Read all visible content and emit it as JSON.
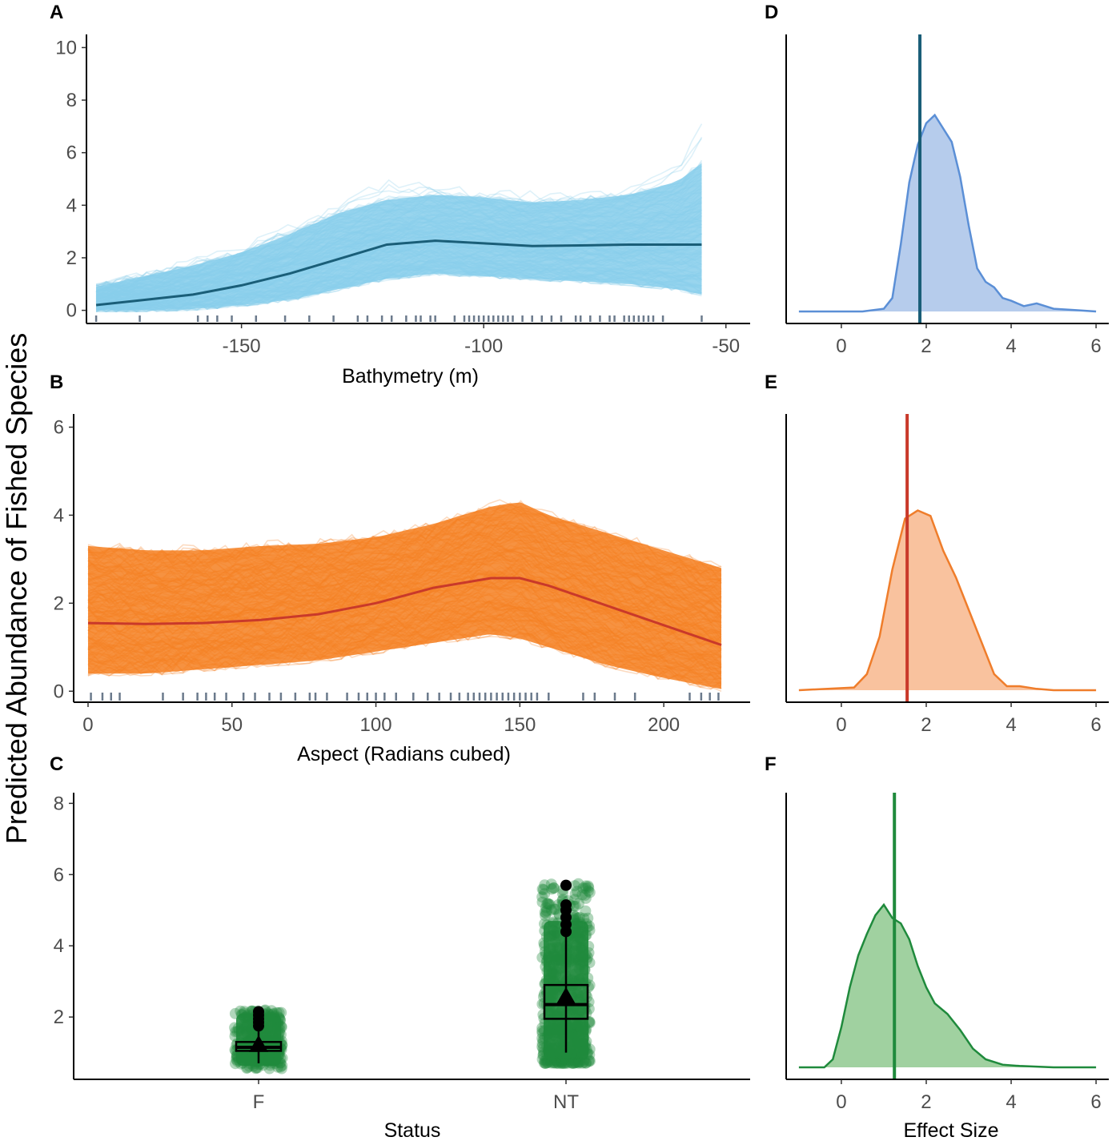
{
  "figure": {
    "y_title": "Predicted Abundance of Fished Species"
  },
  "chart_data": [
    {
      "id": "A",
      "panel_label": "A",
      "type": "line",
      "xlabel": "Bathymetry (m)",
      "ylabel": "",
      "xlim": [
        -182,
        -45
      ],
      "ylim": [
        -0.5,
        10.5
      ],
      "x_ticks": [
        -150,
        -100,
        -50
      ],
      "x_tick_labels": [
        "-150",
        "-100",
        "-50"
      ],
      "y_ticks": [
        0,
        2,
        4,
        6,
        8,
        10
      ],
      "y_tick_labels": [
        "0",
        "2",
        "4",
        "6",
        "8",
        "10"
      ],
      "x": [
        -180,
        -170,
        -160,
        -150,
        -140,
        -130,
        -120,
        -110,
        -100,
        -90,
        -80,
        -70,
        -60,
        -55
      ],
      "mean_line": [
        0.2,
        0.4,
        0.6,
        0.95,
        1.4,
        1.95,
        2.5,
        2.65,
        2.55,
        2.45,
        2.47,
        2.5,
        2.5,
        2.5
      ],
      "band_upper": [
        0.9,
        1.3,
        1.7,
        2.2,
        2.9,
        3.7,
        4.2,
        4.4,
        4.3,
        4.1,
        4.2,
        4.4,
        4.9,
        5.6
      ],
      "band_lower": [
        0.0,
        0.0,
        0.05,
        0.2,
        0.4,
        0.8,
        1.2,
        1.4,
        1.3,
        1.2,
        1.1,
        1.0,
        0.8,
        0.6
      ],
      "bootstrap_max": [
        1.0,
        1.5,
        2.0,
        2.5,
        3.3,
        4.2,
        5.2,
        4.9,
        4.7,
        4.6,
        4.5,
        4.8,
        5.8,
        7.5
      ],
      "rug": [
        -180,
        -171,
        -159,
        -157,
        -155,
        -152,
        -147,
        -141,
        -136,
        -131,
        -126,
        -124,
        -121,
        -119,
        -116,
        -114,
        -113,
        -111,
        -110,
        -106,
        -104,
        -103,
        -102,
        -101,
        -100,
        -99,
        -98,
        -97,
        -96,
        -95,
        -94,
        -92,
        -90,
        -88,
        -86,
        -84,
        -81,
        -80,
        -78,
        -76,
        -74,
        -73,
        -71,
        -70,
        -69,
        -68,
        -67,
        -66,
        -65,
        -63,
        -55
      ],
      "colors": {
        "band": "#87ceeb",
        "mean": "#1a5e78",
        "rug": "#6b7a8c"
      }
    },
    {
      "id": "B",
      "panel_label": "B",
      "type": "line",
      "xlabel": "Aspect (Radians cubed)",
      "ylabel": "",
      "xlim": [
        -5,
        230
      ],
      "ylim": [
        -0.25,
        6.3
      ],
      "x_ticks": [
        0,
        50,
        100,
        150,
        200
      ],
      "x_tick_labels": [
        "0",
        "50",
        "100",
        "150",
        "200"
      ],
      "y_ticks": [
        0,
        2,
        4,
        6
      ],
      "y_tick_labels": [
        "0",
        "2",
        "4",
        "6"
      ],
      "x": [
        0,
        20,
        40,
        60,
        80,
        100,
        120,
        140,
        150,
        160,
        180,
        200,
        220
      ],
      "mean_line": [
        1.55,
        1.53,
        1.55,
        1.62,
        1.75,
        2.0,
        2.35,
        2.57,
        2.57,
        2.4,
        1.95,
        1.5,
        1.05
      ],
      "band_upper": [
        3.3,
        3.2,
        3.2,
        3.3,
        3.35,
        3.5,
        3.8,
        4.2,
        4.3,
        4.0,
        3.6,
        3.2,
        2.8
      ],
      "band_lower": [
        0.4,
        0.4,
        0.5,
        0.6,
        0.7,
        0.9,
        1.1,
        1.3,
        1.2,
        1.0,
        0.6,
        0.3,
        0.05
      ],
      "bootstrap_max": [
        4.1,
        3.8,
        3.6,
        3.8,
        3.7,
        3.8,
        4.6,
        5.5,
        5.3,
        4.8,
        4.2,
        4.0,
        3.9
      ],
      "rug": [
        1,
        5,
        8,
        11,
        26,
        33,
        38,
        41,
        44,
        48,
        54,
        58,
        63,
        67,
        72,
        77,
        79,
        83,
        90,
        94,
        97,
        100,
        103,
        107,
        113,
        118,
        122,
        126,
        129,
        132,
        134,
        136,
        138,
        140,
        142,
        144,
        146,
        148,
        150,
        152,
        154,
        156,
        160,
        172,
        176,
        183,
        190,
        209,
        213,
        216,
        219
      ],
      "colors": {
        "band": "#f57f20",
        "mean": "#c9392a",
        "rug": "#6b7a8c"
      }
    },
    {
      "id": "C",
      "panel_label": "C",
      "type": "box",
      "xlabel": "Status",
      "ylabel": "",
      "categories": [
        "F",
        "NT"
      ],
      "ylim": [
        0.25,
        8.3
      ],
      "y_ticks": [
        2,
        4,
        6,
        8
      ],
      "y_tick_labels": [
        "2",
        "4",
        "6",
        "8"
      ],
      "boxes": [
        {
          "category": "F",
          "min": 0.7,
          "q1": 1.05,
          "median": 1.15,
          "q3": 1.3,
          "max": 1.6,
          "mean": 1.2,
          "outliers": [
            1.75,
            1.85,
            1.95,
            2.05,
            2.15
          ],
          "points_min": 0.55,
          "points_max": 2.2
        },
        {
          "category": "NT",
          "min": 1.0,
          "q1": 1.95,
          "median": 2.35,
          "q3": 2.9,
          "max": 4.3,
          "mean": 2.55,
          "outliers": [
            4.4,
            4.6,
            4.8,
            5.0,
            5.15,
            5.7
          ],
          "points_min": 0.7,
          "points_max": 5.75
        }
      ],
      "colors": {
        "points": "#1f8a3c",
        "box": "#000000"
      }
    },
    {
      "id": "D",
      "panel_label": "D",
      "type": "area",
      "xlabel": "",
      "ylabel": "",
      "xlim": [
        -1.3,
        6.3
      ],
      "ylim": [
        -0.03,
        1.0
      ],
      "x_ticks": [
        0,
        2,
        4,
        6
      ],
      "x_tick_labels": [
        "0",
        "2",
        "4",
        "6"
      ],
      "x": [
        -1.0,
        0.5,
        1.0,
        1.2,
        1.4,
        1.6,
        1.8,
        2.0,
        2.2,
        2.4,
        2.6,
        2.8,
        3.0,
        3.2,
        3.4,
        3.6,
        3.8,
        4.0,
        4.3,
        4.6,
        5.0,
        5.5,
        6.0
      ],
      "density": [
        0.0,
        0.0,
        0.01,
        0.05,
        0.25,
        0.48,
        0.62,
        0.7,
        0.73,
        0.68,
        0.63,
        0.5,
        0.32,
        0.16,
        0.11,
        0.09,
        0.05,
        0.04,
        0.02,
        0.03,
        0.01,
        0.005,
        0.0
      ],
      "reference_line": 1.85,
      "colors": {
        "fill": "#aec6ea",
        "line": "#5b8fd6",
        "ref": "#1a5e78"
      }
    },
    {
      "id": "E",
      "panel_label": "E",
      "type": "area",
      "xlabel": "",
      "ylabel": "",
      "xlim": [
        -1.3,
        6.3
      ],
      "ylim": [
        -0.03,
        1.0
      ],
      "x_ticks": [
        0,
        2,
        4,
        6
      ],
      "x_tick_labels": [
        "0",
        "2",
        "4",
        "6"
      ],
      "x": [
        -1.0,
        0.3,
        0.6,
        0.9,
        1.2,
        1.5,
        1.8,
        2.1,
        2.4,
        2.7,
        3.0,
        3.3,
        3.6,
        3.9,
        4.2,
        4.6,
        5.0,
        6.0
      ],
      "density": [
        0.0,
        0.01,
        0.06,
        0.2,
        0.45,
        0.64,
        0.67,
        0.65,
        0.52,
        0.42,
        0.3,
        0.18,
        0.06,
        0.015,
        0.015,
        0.005,
        0.0,
        0.0
      ],
      "reference_line": 1.55,
      "colors": {
        "fill": "#f8bb93",
        "line": "#ef7d2b",
        "ref": "#c9392a"
      }
    },
    {
      "id": "F",
      "panel_label": "F",
      "type": "area",
      "xlabel": "Effect Size",
      "ylabel": "",
      "xlim": [
        -1.3,
        6.3
      ],
      "ylim": [
        -0.03,
        1.0
      ],
      "x_ticks": [
        0,
        2,
        4,
        6
      ],
      "x_tick_labels": [
        "0",
        "2",
        "4",
        "6"
      ],
      "x": [
        -1.0,
        -0.4,
        -0.2,
        0.0,
        0.2,
        0.4,
        0.6,
        0.8,
        1.0,
        1.2,
        1.4,
        1.6,
        1.8,
        2.0,
        2.2,
        2.5,
        2.8,
        3.1,
        3.4,
        3.8,
        4.2,
        5.0,
        6.0
      ],
      "density": [
        0.0,
        0.0,
        0.03,
        0.15,
        0.3,
        0.42,
        0.5,
        0.57,
        0.61,
        0.56,
        0.54,
        0.48,
        0.38,
        0.3,
        0.24,
        0.2,
        0.14,
        0.07,
        0.03,
        0.01,
        0.005,
        0.0,
        0.0
      ],
      "reference_line": 1.25,
      "colors": {
        "fill": "#96cc96",
        "line": "#1f8a3c",
        "ref": "#1f8a3c"
      }
    }
  ]
}
